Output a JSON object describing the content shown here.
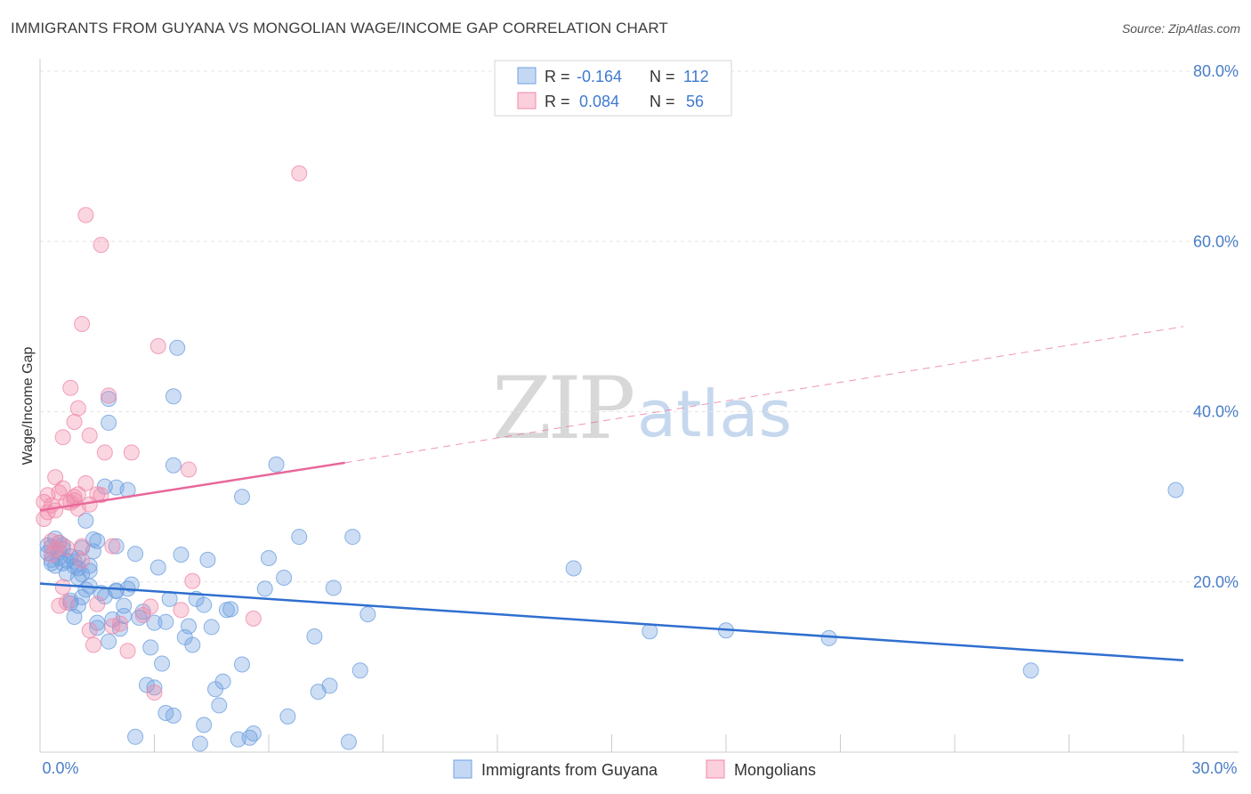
{
  "header": {
    "title": "IMMIGRANTS FROM GUYANA VS MONGOLIAN WAGE/INCOME GAP CORRELATION CHART",
    "source": "Source: ZipAtlas.com"
  },
  "watermark": {
    "zip": "ZIP",
    "atlas": "atlas"
  },
  "legend": {
    "rows": [
      {
        "r_label": "R =",
        "r_value": "-0.164",
        "n_label": "N =",
        "n_value": "112",
        "color": "#6fa0e0"
      },
      {
        "r_label": "R =",
        "r_value": "0.084",
        "n_label": "N =",
        "n_value": "56",
        "color": "#f08aaa"
      }
    ]
  },
  "bottom_legend": [
    {
      "label": "Immigrants from Guyana",
      "color": "#6fa0e0"
    },
    {
      "label": "Mongolians",
      "color": "#f08aaa"
    }
  ],
  "chart_data": {
    "type": "scatter",
    "title": "IMMIGRANTS FROM GUYANA VS MONGOLIAN WAGE/INCOME GAP CORRELATION CHART",
    "xlabel": "",
    "ylabel": "Wage/Income Gap",
    "xlim": [
      0,
      30
    ],
    "ylim": [
      0,
      80
    ],
    "x_tick_labels": [
      "0.0%",
      "30.0%"
    ],
    "y_ticks": [
      20,
      40,
      60,
      80
    ],
    "y_tick_labels": [
      "20.0%",
      "40.0%",
      "60.0%",
      "80.0%"
    ],
    "grid": true,
    "colors": {
      "blue": "#6fa0e0",
      "blue_line": "#2f6fcf",
      "pink": "#f08aaa",
      "pink_line": "#e8679a",
      "tick": "#4a7ec8"
    },
    "series": [
      {
        "name": "Immigrants from Guyana",
        "color": "#6fa0e0",
        "trend": {
          "x0": 0,
          "y0": 19.8,
          "x1": 30,
          "y1": 10.8,
          "dashed_from": null
        },
        "points": [
          [
            0.2,
            24.3
          ],
          [
            0.2,
            23.4
          ],
          [
            0.3,
            22.6
          ],
          [
            0.3,
            24.1
          ],
          [
            0.4,
            21.9
          ],
          [
            0.5,
            22.8
          ],
          [
            0.5,
            24.6
          ],
          [
            0.6,
            23.9
          ],
          [
            0.6,
            22.2
          ],
          [
            0.7,
            21.0
          ],
          [
            0.7,
            22.5
          ],
          [
            0.8,
            23.0
          ],
          [
            0.8,
            17.5
          ],
          [
            0.9,
            15.9
          ],
          [
            0.9,
            21.8
          ],
          [
            1.0,
            20.5
          ],
          [
            1.0,
            21.6
          ],
          [
            1.0,
            17.2
          ],
          [
            1.1,
            24.0
          ],
          [
            1.1,
            18.2
          ],
          [
            1.2,
            19.1
          ],
          [
            1.2,
            27.2
          ],
          [
            1.3,
            21.3
          ],
          [
            1.3,
            19.5
          ],
          [
            1.4,
            23.6
          ],
          [
            1.4,
            25.0
          ],
          [
            1.5,
            24.8
          ],
          [
            1.5,
            15.2
          ],
          [
            1.5,
            14.6
          ],
          [
            1.6,
            18.7
          ],
          [
            1.7,
            31.2
          ],
          [
            1.7,
            18.3
          ],
          [
            1.8,
            13.0
          ],
          [
            1.8,
            41.5
          ],
          [
            1.8,
            38.7
          ],
          [
            1.9,
            15.6
          ],
          [
            2.0,
            31.1
          ],
          [
            2.0,
            24.2
          ],
          [
            2.0,
            18.9
          ],
          [
            2.1,
            14.5
          ],
          [
            2.2,
            17.2
          ],
          [
            2.3,
            30.8
          ],
          [
            2.3,
            19.2
          ],
          [
            2.4,
            19.7
          ],
          [
            2.5,
            23.3
          ],
          [
            2.6,
            15.8
          ],
          [
            2.7,
            16.5
          ],
          [
            2.8,
            7.9
          ],
          [
            2.9,
            12.3
          ],
          [
            3.0,
            15.2
          ],
          [
            3.1,
            21.7
          ],
          [
            3.2,
            10.4
          ],
          [
            3.3,
            15.3
          ],
          [
            3.4,
            18.0
          ],
          [
            3.5,
            33.7
          ],
          [
            3.5,
            41.8
          ],
          [
            3.6,
            47.5
          ],
          [
            3.7,
            23.2
          ],
          [
            3.8,
            13.5
          ],
          [
            3.9,
            14.8
          ],
          [
            4.0,
            12.6
          ],
          [
            4.1,
            18.0
          ],
          [
            4.3,
            17.3
          ],
          [
            4.4,
            22.6
          ],
          [
            4.5,
            14.7
          ],
          [
            4.6,
            7.4
          ],
          [
            4.8,
            8.3
          ],
          [
            4.9,
            16.7
          ],
          [
            5.0,
            16.8
          ],
          [
            5.2,
            1.5
          ],
          [
            5.3,
            30.0
          ],
          [
            5.3,
            10.3
          ],
          [
            5.6,
            2.2
          ],
          [
            5.9,
            19.2
          ],
          [
            6.0,
            22.8
          ],
          [
            6.2,
            33.8
          ],
          [
            6.4,
            20.5
          ],
          [
            6.5,
            4.2
          ],
          [
            6.8,
            25.3
          ],
          [
            7.2,
            13.6
          ],
          [
            7.3,
            7.1
          ],
          [
            7.6,
            7.8
          ],
          [
            7.7,
            19.3
          ],
          [
            8.1,
            1.2
          ],
          [
            8.2,
            25.3
          ],
          [
            8.4,
            9.6
          ],
          [
            8.6,
            16.2
          ],
          [
            14.0,
            21.6
          ],
          [
            16.0,
            14.2
          ],
          [
            18.0,
            14.3
          ],
          [
            20.7,
            13.4
          ],
          [
            26.0,
            9.6
          ],
          [
            29.8,
            30.8
          ],
          [
            0.4,
            25.1
          ],
          [
            0.6,
            24.3
          ],
          [
            1.0,
            22.8
          ],
          [
            1.3,
            21.9
          ],
          [
            2.5,
            1.8
          ],
          [
            3.3,
            4.6
          ],
          [
            3.5,
            4.3
          ],
          [
            4.2,
            1.0
          ],
          [
            4.3,
            3.2
          ],
          [
            4.7,
            5.5
          ],
          [
            5.5,
            1.7
          ],
          [
            0.3,
            22.2
          ],
          [
            0.5,
            23.5
          ],
          [
            0.9,
            22.4
          ],
          [
            1.1,
            20.9
          ],
          [
            2.0,
            19.0
          ],
          [
            2.2,
            16.0
          ],
          [
            3.0,
            7.6
          ],
          [
            0.8,
            17.8
          ]
        ]
      },
      {
        "name": "Mongolians",
        "color": "#f08aaa",
        "trend": {
          "x0": 0,
          "y0": 28.4,
          "x1": 8,
          "y1": 34.0,
          "dashed_x1": 30,
          "dashed_y1": 50.0
        },
        "points": [
          [
            0.1,
            29.4
          ],
          [
            0.1,
            27.4
          ],
          [
            0.2,
            30.2
          ],
          [
            0.2,
            28.2
          ],
          [
            0.3,
            29.0
          ],
          [
            0.3,
            24.8
          ],
          [
            0.4,
            32.3
          ],
          [
            0.4,
            23.8
          ],
          [
            0.5,
            24.6
          ],
          [
            0.5,
            30.5
          ],
          [
            0.6,
            31.0
          ],
          [
            0.6,
            19.4
          ],
          [
            0.7,
            29.4
          ],
          [
            0.7,
            24.0
          ],
          [
            0.8,
            42.8
          ],
          [
            0.8,
            29.3
          ],
          [
            0.9,
            38.8
          ],
          [
            0.9,
            29.6
          ],
          [
            1.0,
            40.4
          ],
          [
            1.0,
            30.3
          ],
          [
            1.1,
            50.3
          ],
          [
            1.1,
            24.2
          ],
          [
            1.2,
            63.1
          ],
          [
            1.2,
            31.6
          ],
          [
            1.3,
            37.2
          ],
          [
            1.3,
            29.1
          ],
          [
            1.4,
            12.6
          ],
          [
            1.5,
            17.4
          ],
          [
            1.6,
            59.6
          ],
          [
            1.6,
            30.2
          ],
          [
            1.7,
            35.2
          ],
          [
            1.8,
            41.9
          ],
          [
            1.9,
            14.8
          ],
          [
            2.3,
            11.9
          ],
          [
            2.4,
            35.2
          ],
          [
            2.7,
            16.1
          ],
          [
            2.9,
            17.1
          ],
          [
            3.0,
            7.0
          ],
          [
            3.1,
            47.7
          ],
          [
            3.7,
            16.7
          ],
          [
            3.9,
            33.2
          ],
          [
            4.0,
            20.1
          ],
          [
            5.6,
            15.7
          ],
          [
            6.8,
            68.0
          ],
          [
            0.6,
            37.0
          ],
          [
            0.3,
            23.2
          ],
          [
            0.9,
            30.0
          ],
          [
            1.0,
            28.6
          ],
          [
            1.1,
            22.5
          ],
          [
            1.5,
            30.3
          ],
          [
            0.4,
            28.4
          ],
          [
            0.7,
            17.6
          ],
          [
            1.3,
            14.3
          ],
          [
            2.1,
            15.1
          ],
          [
            0.5,
            17.2
          ],
          [
            1.9,
            24.2
          ]
        ]
      }
    ]
  }
}
